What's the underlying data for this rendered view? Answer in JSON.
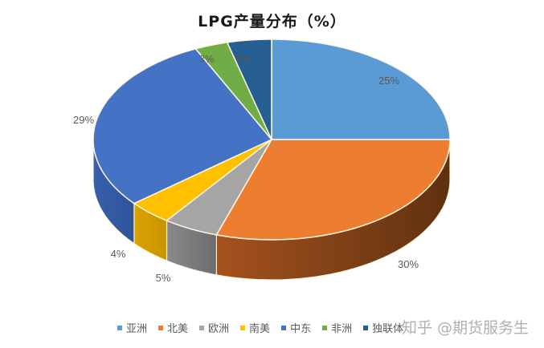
{
  "header": {
    "title": "LPG产量分布（%）"
  },
  "chart_data": {
    "type": "pie",
    "style": "3d-pie",
    "title": "LPG产量分布（%）",
    "categories": [
      "亚洲",
      "北美",
      "欧洲",
      "南美",
      "中东",
      "非洲",
      "独联体"
    ],
    "values": [
      25,
      30,
      5,
      4,
      29,
      3,
      4
    ],
    "unit": "%",
    "data_labels": [
      "25%",
      "30%",
      "5%",
      "4%",
      "29%",
      "3%",
      "4%"
    ],
    "colors": [
      "#5b9bd5",
      "#ed7d31",
      "#a5a5a5",
      "#ffc000",
      "#4472c4",
      "#70ad47",
      "#255e91"
    ],
    "legend_position": "bottom",
    "start_angle": "12 o'clock, clockwise"
  },
  "legend": {
    "items": [
      {
        "label": "亚洲",
        "color": "#5b9bd5"
      },
      {
        "label": "北美",
        "color": "#ed7d31"
      },
      {
        "label": "欧洲",
        "color": "#a5a5a5"
      },
      {
        "label": "南美",
        "color": "#ffc000"
      },
      {
        "label": "中东",
        "color": "#4472c4"
      },
      {
        "label": "非洲",
        "color": "#70ad47"
      },
      {
        "label": "独联体",
        "color": "#255e91"
      }
    ]
  },
  "watermark": {
    "text": "知乎 @期货服务生"
  }
}
